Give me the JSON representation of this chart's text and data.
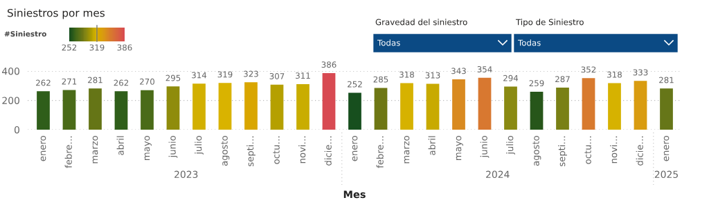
{
  "chart_data": {
    "type": "bar",
    "title": "Siniestros por mes",
    "xlabel": "Mes",
    "legend_title": "#Siniestro",
    "categories": [
      "enero",
      "febre…",
      "marzo",
      "abril",
      "mayo",
      "junio",
      "julio",
      "agosto",
      "septi…",
      "octu…",
      "novi…",
      "dicie…",
      "enero",
      "febre…",
      "marzo",
      "abril",
      "mayo",
      "junio",
      "julio",
      "agosto",
      "septi…",
      "octu…",
      "novi…",
      "dicie…",
      "enero"
    ],
    "values": [
      262,
      271,
      281,
      262,
      270,
      295,
      314,
      319,
      323,
      307,
      311,
      386,
      252,
      285,
      318,
      313,
      343,
      354,
      294,
      259,
      287,
      352,
      318,
      333,
      281
    ],
    "colors": [
      "#2f5e1a",
      "#4a6b18",
      "#657516",
      "#2f5e1a",
      "#4a6b18",
      "#8f8c0c",
      "#d2b000",
      "#d9b300",
      "#d9a600",
      "#b5a000",
      "#c9ad00",
      "#d84a52",
      "#174f1e",
      "#6e7714",
      "#d6b200",
      "#c8aa00",
      "#d98a20",
      "#d87830",
      "#8a8a12",
      "#27561a",
      "#798015",
      "#d87a2e",
      "#d6b200",
      "#d99c10",
      "#667618"
    ],
    "clim": [
      252,
      386
    ],
    "cticks": [
      252,
      319,
      386
    ],
    "ylim": [
      0,
      400
    ],
    "yticks": [
      0,
      200,
      400
    ],
    "grid": "y",
    "data_labels": true,
    "annotations": [
      "2023",
      "2024",
      "2025",
      "Gravedad del siniestro",
      "Todas",
      "Tipo de Siniestro",
      "Todas"
    ]
  }
}
